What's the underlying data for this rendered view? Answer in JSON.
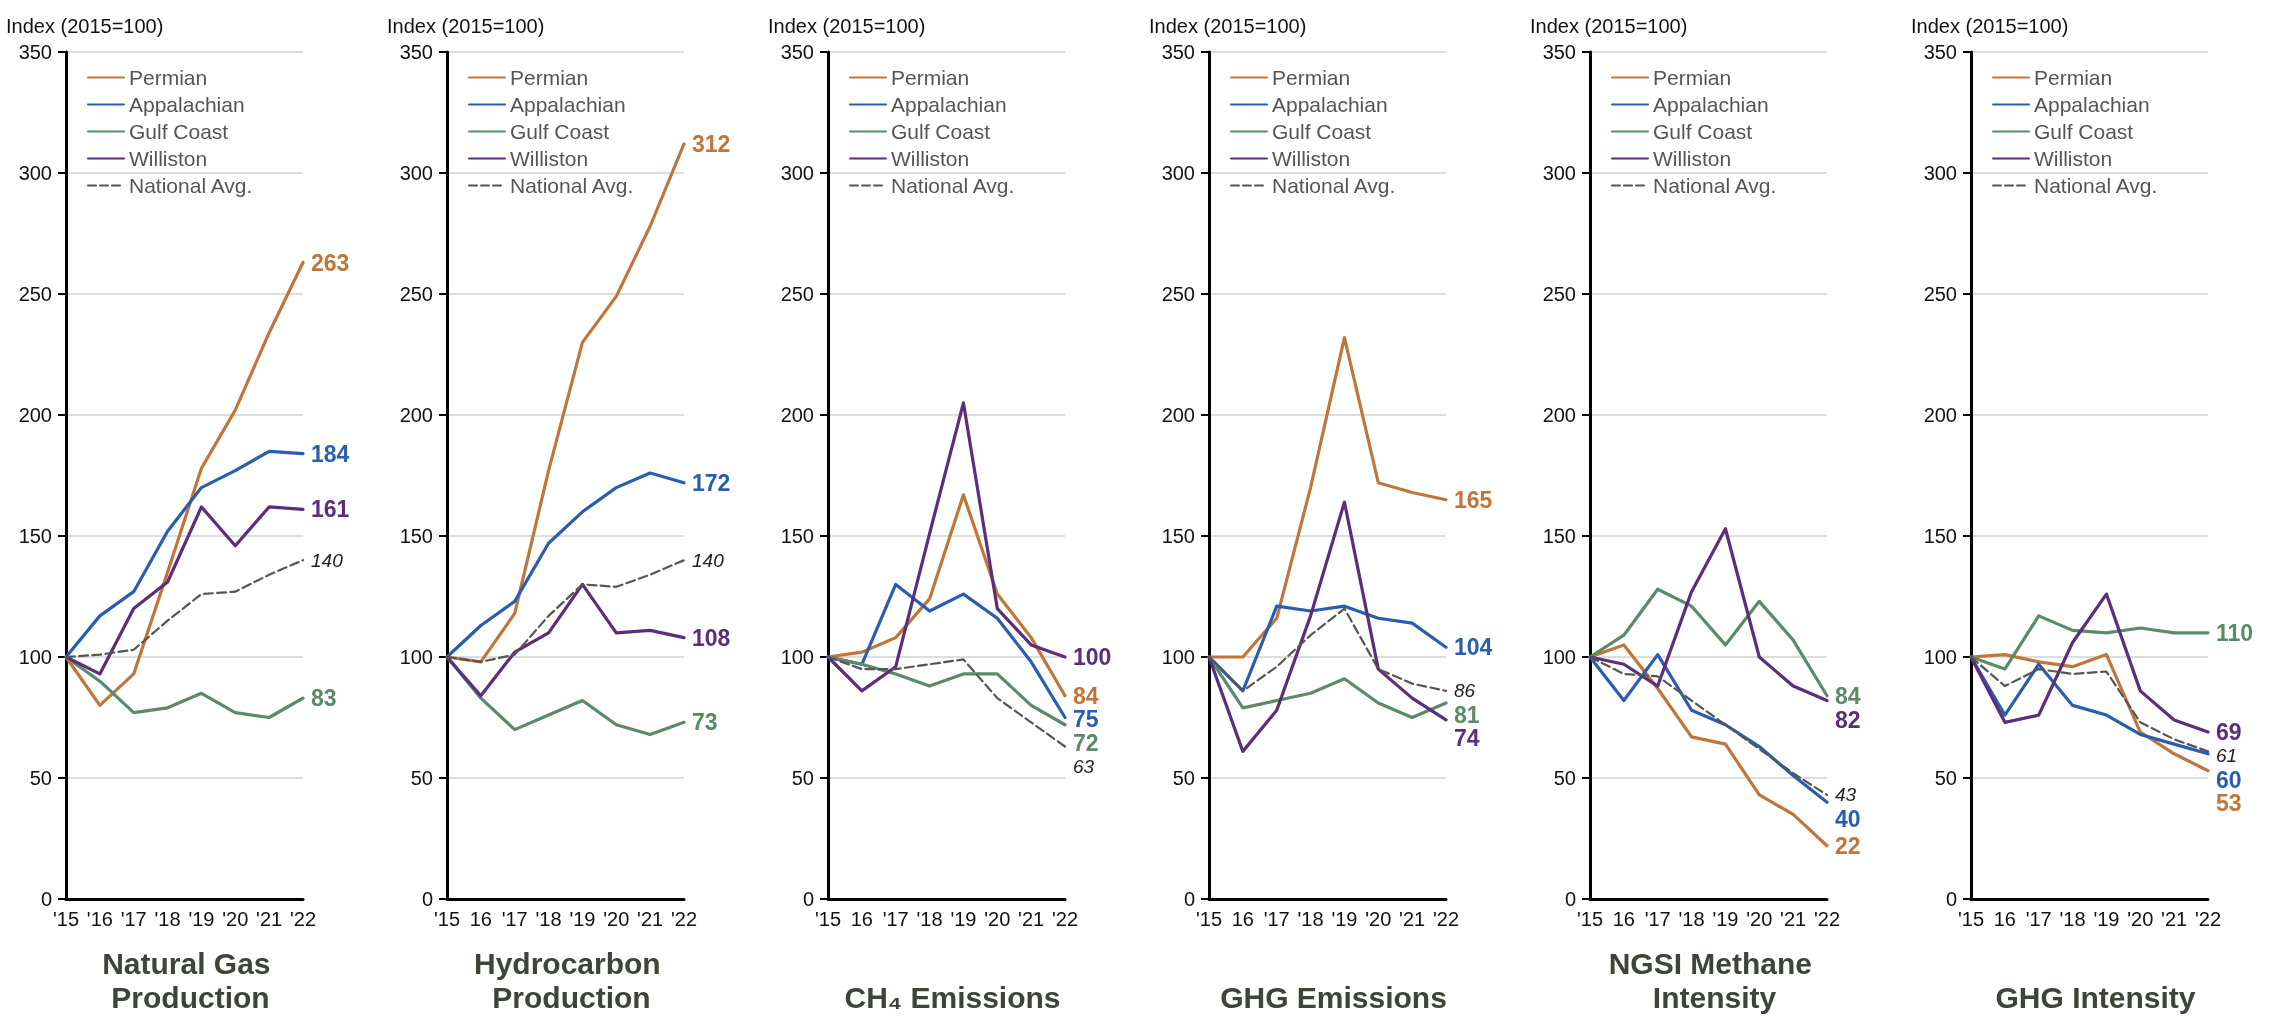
{
  "chart_data": [
    {
      "type": "line",
      "title": "Natural Gas Production",
      "ylabel": "Index (2015=100)",
      "categories": [
        "'15",
        "'16",
        "'17",
        "'18",
        "'19",
        "'20",
        "'21",
        "'22"
      ],
      "ylim": [
        0,
        350
      ],
      "yticks": [
        0,
        50,
        100,
        150,
        200,
        250,
        300,
        350
      ],
      "grid": "y",
      "legend": "top left",
      "marker": "none",
      "series": [
        {
          "name": "Permian",
          "color": "#c0763a",
          "values": [
            100,
            80,
            93,
            135,
            178,
            202,
            234,
            263
          ],
          "value_labels": [
            null,
            null,
            null,
            null,
            null,
            null,
            null,
            "263"
          ]
        },
        {
          "name": "Appalachian",
          "color": "#2a5db0",
          "values": [
            100,
            117,
            127,
            152,
            170,
            177,
            185,
            184
          ],
          "value_labels": [
            null,
            null,
            null,
            null,
            null,
            null,
            null,
            "184"
          ]
        },
        {
          "name": "Gulf Coast",
          "color": "#5a8a68",
          "values": [
            100,
            90,
            77,
            79,
            85,
            77,
            75,
            83
          ],
          "value_labels": [
            null,
            null,
            null,
            null,
            null,
            null,
            null,
            "83"
          ]
        },
        {
          "name": "Williston",
          "color": "#5b2d7a",
          "values": [
            100,
            93,
            120,
            131,
            162,
            146,
            162,
            161
          ],
          "value_labels": [
            null,
            null,
            null,
            null,
            null,
            null,
            null,
            "161"
          ]
        },
        {
          "name": "National Avg.",
          "color": "#555555",
          "line_style": "dashed",
          "values": [
            100,
            101,
            103,
            115,
            126,
            127,
            134,
            140
          ],
          "value_labels": [
            null,
            null,
            null,
            null,
            null,
            null,
            null,
            "140"
          ]
        }
      ]
    },
    {
      "type": "line",
      "title": "Hydrocarbon Production",
      "ylabel": "Index (2015=100)",
      "categories": [
        "'15",
        "16",
        "'17",
        "'18",
        "'19",
        "'20",
        "'21",
        "'22"
      ],
      "ylim": [
        0,
        350
      ],
      "yticks": [
        0,
        50,
        100,
        150,
        200,
        250,
        300,
        350
      ],
      "grid": "y",
      "legend": "top left",
      "marker": "none",
      "series": [
        {
          "name": "Permian",
          "color": "#c0763a",
          "values": [
            100,
            98,
            118,
            177,
            230,
            249,
            278,
            312
          ],
          "value_labels": [
            null,
            null,
            null,
            null,
            null,
            null,
            null,
            "312"
          ]
        },
        {
          "name": "Appalachian",
          "color": "#2a5db0",
          "values": [
            100,
            113,
            123,
            147,
            160,
            170,
            176,
            172
          ],
          "value_labels": [
            null,
            null,
            null,
            null,
            null,
            null,
            null,
            "172"
          ]
        },
        {
          "name": "Gulf Coast",
          "color": "#5a8a68",
          "values": [
            100,
            83,
            70,
            76,
            82,
            72,
            68,
            73
          ],
          "value_labels": [
            null,
            null,
            null,
            null,
            null,
            null,
            null,
            "73"
          ]
        },
        {
          "name": "Williston",
          "color": "#5b2d7a",
          "values": [
            100,
            84,
            102,
            110,
            130,
            110,
            111,
            108
          ],
          "value_labels": [
            null,
            null,
            null,
            null,
            null,
            null,
            null,
            "108"
          ]
        },
        {
          "name": "National Avg.",
          "color": "#555555",
          "line_style": "dashed",
          "values": [
            100,
            98,
            101,
            117,
            130,
            129,
            134,
            140
          ],
          "value_labels": [
            null,
            null,
            null,
            null,
            null,
            null,
            null,
            "140"
          ]
        }
      ]
    },
    {
      "type": "line",
      "title": "CH₄ Emissions",
      "ylabel": "Index (2015=100)",
      "categories": [
        "'15",
        "16",
        "'17",
        "'18",
        "'19",
        "'20",
        "'21",
        "'22"
      ],
      "ylim": [
        0,
        350
      ],
      "yticks": [
        0,
        50,
        100,
        150,
        200,
        250,
        300,
        350
      ],
      "grid": "y",
      "legend": "top left",
      "marker": "none",
      "series": [
        {
          "name": "Permian",
          "color": "#c0763a",
          "values": [
            100,
            102,
            108,
            124,
            167,
            126,
            108,
            84
          ],
          "value_labels": [
            null,
            null,
            null,
            null,
            null,
            null,
            null,
            "84"
          ]
        },
        {
          "name": "Appalachian",
          "color": "#2a5db0",
          "values": [
            100,
            97,
            130,
            119,
            126,
            116,
            98,
            75
          ],
          "value_labels": [
            null,
            null,
            null,
            null,
            null,
            null,
            null,
            "75"
          ]
        },
        {
          "name": "Gulf Coast",
          "color": "#5a8a68",
          "values": [
            100,
            97,
            93,
            88,
            93,
            93,
            80,
            72
          ],
          "value_labels": [
            null,
            null,
            null,
            null,
            null,
            null,
            null,
            "72"
          ]
        },
        {
          "name": "Williston",
          "color": "#5b2d7a",
          "values": [
            100,
            86,
            96,
            151,
            205,
            120,
            105,
            100
          ],
          "value_labels": [
            null,
            null,
            null,
            null,
            null,
            null,
            null,
            "100"
          ]
        },
        {
          "name": "National Avg.",
          "color": "#555555",
          "line_style": "dashed",
          "values": [
            100,
            95,
            95,
            97,
            99,
            83,
            73,
            63
          ],
          "value_labels": [
            null,
            null,
            null,
            null,
            null,
            null,
            null,
            "63"
          ]
        }
      ]
    },
    {
      "type": "line",
      "title": "GHG Emissions",
      "ylabel": "Index (2015=100)",
      "categories": [
        "'15",
        "16",
        "'17",
        "'18",
        "'19",
        "'20",
        "'21",
        "'22"
      ],
      "ylim": [
        0,
        350
      ],
      "yticks": [
        0,
        50,
        100,
        150,
        200,
        250,
        300,
        350
      ],
      "grid": "y",
      "legend": "top left",
      "marker": "none",
      "series": [
        {
          "name": "Permian",
          "color": "#c0763a",
          "values": [
            100,
            100,
            116,
            170,
            232,
            172,
            168,
            165
          ],
          "value_labels": [
            null,
            null,
            null,
            null,
            null,
            null,
            null,
            "165"
          ]
        },
        {
          "name": "Appalachian",
          "color": "#2a5db0",
          "values": [
            100,
            86,
            121,
            119,
            121,
            116,
            114,
            104
          ],
          "value_labels": [
            null,
            null,
            null,
            null,
            null,
            null,
            null,
            "104"
          ]
        },
        {
          "name": "Gulf Coast",
          "color": "#5a8a68",
          "values": [
            100,
            79,
            82,
            85,
            91,
            81,
            75,
            81
          ],
          "value_labels": [
            null,
            null,
            null,
            null,
            null,
            null,
            null,
            "81"
          ]
        },
        {
          "name": "Williston",
          "color": "#5b2d7a",
          "values": [
            100,
            61,
            78,
            117,
            164,
            95,
            83,
            74
          ],
          "value_labels": [
            null,
            null,
            null,
            null,
            null,
            null,
            null,
            "74"
          ]
        },
        {
          "name": "National Avg.",
          "color": "#555555",
          "line_style": "dashed",
          "values": [
            100,
            86,
            96,
            109,
            120,
            95,
            89,
            86
          ],
          "value_labels": [
            null,
            null,
            null,
            null,
            null,
            null,
            null,
            "86"
          ]
        }
      ]
    },
    {
      "type": "line",
      "title": "NGSI Methane Intensity",
      "ylabel": "Index (2015=100)",
      "categories": [
        "'15",
        "16",
        "'17",
        "'18",
        "'19",
        "'20",
        "'21",
        "'22"
      ],
      "ylim": [
        0,
        350
      ],
      "yticks": [
        0,
        50,
        100,
        150,
        200,
        250,
        300,
        350
      ],
      "grid": "y",
      "legend": "top left",
      "marker": "none",
      "series": [
        {
          "name": "Permian",
          "color": "#c0763a",
          "values": [
            100,
            105,
            87,
            67,
            64,
            43,
            35,
            22
          ],
          "value_labels": [
            null,
            null,
            null,
            null,
            null,
            null,
            null,
            "22"
          ]
        },
        {
          "name": "Appalachian",
          "color": "#2a5db0",
          "values": [
            100,
            82,
            101,
            78,
            72,
            63,
            51,
            40
          ],
          "value_labels": [
            null,
            null,
            null,
            null,
            null,
            null,
            null,
            "40"
          ]
        },
        {
          "name": "Gulf Coast",
          "color": "#5a8a68",
          "values": [
            100,
            109,
            128,
            121,
            105,
            123,
            107,
            84
          ],
          "value_labels": [
            null,
            null,
            null,
            null,
            null,
            null,
            null,
            "84"
          ]
        },
        {
          "name": "Williston",
          "color": "#5b2d7a",
          "values": [
            100,
            97,
            88,
            127,
            153,
            100,
            88,
            82
          ],
          "value_labels": [
            null,
            null,
            null,
            null,
            null,
            null,
            null,
            "82"
          ]
        },
        {
          "name": "National Avg.",
          "color": "#555555",
          "line_style": "dashed",
          "values": [
            100,
            93,
            92,
            82,
            72,
            62,
            52,
            43
          ],
          "value_labels": [
            null,
            null,
            null,
            null,
            null,
            null,
            null,
            "43"
          ]
        }
      ]
    },
    {
      "type": "line",
      "title": "GHG Intensity",
      "ylabel": "Index (2015=100)",
      "categories": [
        "'15",
        "16",
        "'17",
        "'18",
        "'19",
        "'20",
        "'21",
        "'22"
      ],
      "ylim": [
        0,
        350
      ],
      "yticks": [
        0,
        50,
        100,
        150,
        200,
        250,
        300,
        350
      ],
      "grid": "y",
      "legend": "top left",
      "marker": "none",
      "series": [
        {
          "name": "Permian",
          "color": "#c0763a",
          "values": [
            100,
            101,
            98,
            96,
            101,
            69,
            60,
            53
          ],
          "value_labels": [
            null,
            null,
            null,
            null,
            null,
            null,
            null,
            "53"
          ]
        },
        {
          "name": "Appalachian",
          "color": "#2a5db0",
          "values": [
            100,
            76,
            97,
            80,
            76,
            68,
            64,
            60
          ],
          "value_labels": [
            null,
            null,
            null,
            null,
            null,
            null,
            null,
            "60"
          ]
        },
        {
          "name": "Gulf Coast",
          "color": "#5a8a68",
          "values": [
            100,
            95,
            117,
            111,
            110,
            112,
            110,
            110
          ],
          "value_labels": [
            null,
            null,
            null,
            null,
            null,
            null,
            null,
            "110"
          ]
        },
        {
          "name": "Williston",
          "color": "#5b2d7a",
          "values": [
            100,
            73,
            76,
            106,
            126,
            86,
            74,
            69
          ],
          "value_labels": [
            null,
            null,
            null,
            null,
            null,
            null,
            null,
            "69"
          ]
        },
        {
          "name": "National Avg.",
          "color": "#555555",
          "line_style": "dashed",
          "values": [
            100,
            88,
            95,
            93,
            94,
            73,
            66,
            61
          ],
          "value_labels": [
            null,
            null,
            null,
            null,
            null,
            null,
            null,
            "61"
          ]
        }
      ]
    }
  ]
}
